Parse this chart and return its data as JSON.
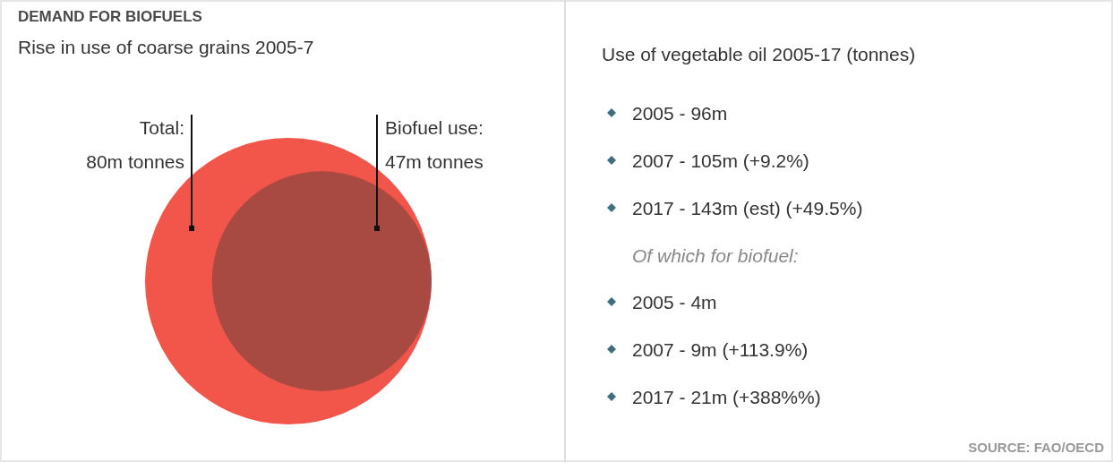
{
  "chart_data": [
    {
      "type": "other",
      "title": "DEMAND FOR BIOFUELS",
      "subtitle": "Rise in use of coarse grains 2005-7",
      "values": [
        80,
        47
      ],
      "value_labels": [
        "80m tonnes",
        "47m tonnes"
      ],
      "colors": [
        "#f2554a",
        "#a84a42"
      ],
      "annotations": [
        "Total:",
        "Biofuel use:",
        "SOURCE: FAO/OECD"
      ]
    },
    {
      "type": "other",
      "title": "Use of vegetable oil 2005-17 (tonnes)",
      "annotations": [
        "2005 - 96m",
        "2007 - 105m (+9.2%)",
        "2017 - 143m (est) (+49.5%)"
      ]
    },
    {
      "type": "other",
      "title": "Of which for biofuel:",
      "annotations": [
        "2005 - 4m",
        "2007 - 9m (+113.9%)",
        "2017 - 21m (+388%%)"
      ]
    }
  ]
}
